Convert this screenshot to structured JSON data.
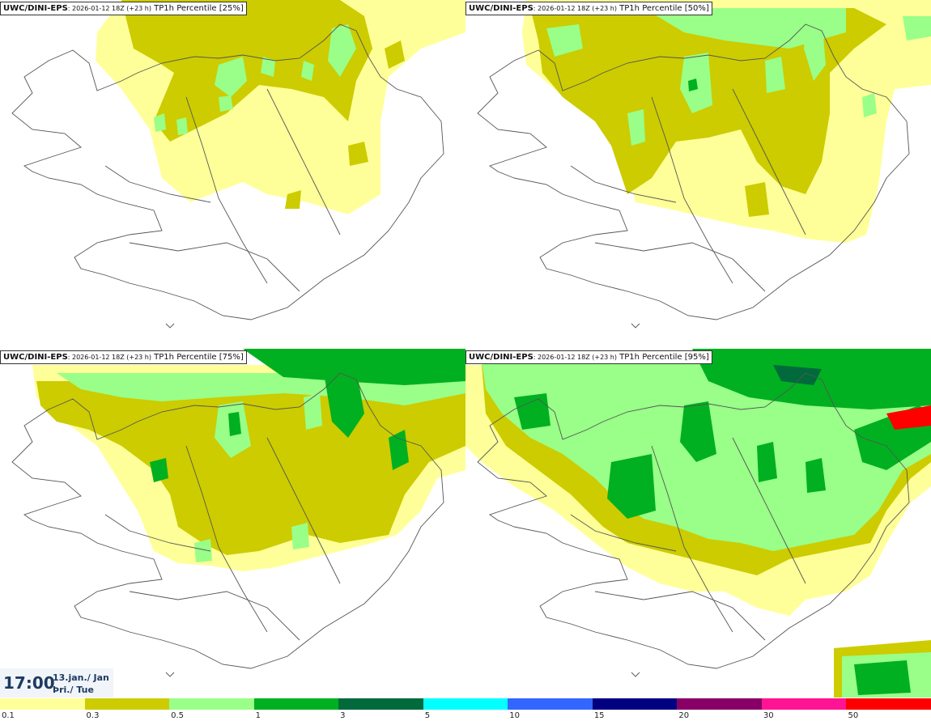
{
  "panels": [
    {
      "model": "UWC/DINI-EPS",
      "run": ": 2026-01-12 18Z (+23 h)",
      "field": "TP1h Percentile [25%]"
    },
    {
      "model": "UWC/DINI-EPS",
      "run": ": 2026-01-12 18Z (+23 h)",
      "field": "TP1h Percentile [50%]"
    },
    {
      "model": "UWC/DINI-EPS",
      "run": ": 2026-01-12 18Z (+23 h)",
      "field": "TP1h Percentile [75%]"
    },
    {
      "model": "UWC/DINI-EPS",
      "run": ": 2026-01-12 18Z (+23 h)",
      "field": "TP1h Percentile [95%]"
    }
  ],
  "valid_time": {
    "time": "17:00",
    "date_line1": "13.jan./ Jan",
    "date_line2": "Þri./ Tue"
  },
  "legend": {
    "ticks": [
      "0.1",
      "0.3",
      "0.5",
      "1",
      "3",
      "5",
      "10",
      "15",
      "20",
      "30",
      "50"
    ],
    "colors": [
      "#ffff99",
      "#cccc00",
      "#99ff88",
      "#00b020",
      "#006a3c",
      "#00ffff",
      "#3366ff",
      "#000080",
      "#880066",
      "#ff1493",
      "#ff0000"
    ]
  },
  "colors": {
    "light_yellow": "#ffff99",
    "olive": "#cccc00",
    "light_green": "#99ff88",
    "green": "#00b020",
    "dark_green": "#006a3c",
    "red": "#ff0000",
    "coastline": "#555555",
    "time_text": "#1f3a60"
  }
}
